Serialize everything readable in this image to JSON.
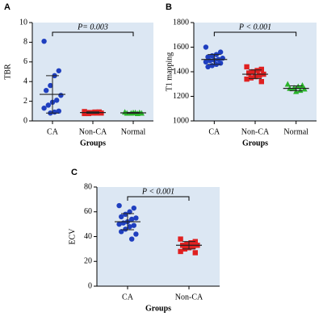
{
  "chart_data": [
    {
      "type": "strip",
      "panel_label": "A",
      "annotation": "P= 0.003",
      "y_label": "TBR",
      "x_label": "Groups",
      "categories": [
        "CA",
        "Non-CA",
        "Normal"
      ],
      "ylim": [
        0,
        10
      ],
      "yticks": [
        0,
        2,
        4,
        6,
        8,
        10
      ],
      "series": [
        {
          "color": "#1f3fbf",
          "marker": "circle",
          "values": [
            8.1,
            5.1,
            4.6,
            3.6,
            3.1,
            2.6,
            2.1,
            1.9,
            1.6,
            1.3,
            1.0,
            0.9,
            0.8
          ],
          "mean": 2.7,
          "sd": 1.9
        },
        {
          "color": "#e02020",
          "marker": "square",
          "values": [
            0.95,
            0.9,
            0.9,
            0.85,
            0.85,
            0.8,
            0.8,
            0.8,
            0.75,
            0.75,
            0.9,
            0.85
          ],
          "mean": 0.85,
          "sd": 0.07
        },
        {
          "color": "#2ab42a",
          "marker": "triangle",
          "values": [
            0.9,
            0.85,
            0.85,
            0.8,
            0.8,
            0.8,
            0.75,
            0.85
          ],
          "mean": 0.82,
          "sd": 0.05
        }
      ]
    },
    {
      "type": "strip",
      "panel_label": "B",
      "annotation": "P < 0.001",
      "y_label": "T1 mapping",
      "x_label": "Groups",
      "categories": [
        "CA",
        "Non-CA",
        "Normal"
      ],
      "ylim": [
        1000,
        1800
      ],
      "yticks": [
        1000,
        1200,
        1400,
        1600,
        1800
      ],
      "series": [
        {
          "color": "#1f3fbf",
          "marker": "circle",
          "values": [
            1600,
            1560,
            1540,
            1530,
            1520,
            1510,
            1500,
            1495,
            1490,
            1480,
            1470,
            1460,
            1450,
            1440
          ],
          "mean": 1500,
          "sd": 40
        },
        {
          "color": "#e02020",
          "marker": "square",
          "values": [
            1440,
            1420,
            1410,
            1400,
            1390,
            1380,
            1370,
            1360,
            1350,
            1340,
            1320
          ],
          "mean": 1380,
          "sd": 35
        },
        {
          "color": "#2ab42a",
          "marker": "triangle",
          "values": [
            1300,
            1290,
            1280,
            1270,
            1265,
            1260,
            1250,
            1240
          ],
          "mean": 1265,
          "sd": 20
        }
      ]
    },
    {
      "type": "strip",
      "panel_label": "C",
      "annotation": "P < 0.001",
      "y_label": "ECV",
      "x_label": "Groups",
      "categories": [
        "CA",
        "Non-CA"
      ],
      "ylim": [
        0,
        80
      ],
      "yticks": [
        0,
        20,
        40,
        60,
        80
      ],
      "series": [
        {
          "color": "#1f3fbf",
          "marker": "circle",
          "values": [
            65,
            63,
            60,
            58,
            56,
            55,
            54,
            52,
            51,
            50,
            49,
            48,
            46,
            44,
            42,
            38
          ],
          "mean": 52,
          "sd": 6.5
        },
        {
          "color": "#e02020",
          "marker": "square",
          "values": [
            38,
            36,
            35,
            34,
            33,
            33,
            32,
            31,
            30,
            28,
            27
          ],
          "mean": 33,
          "sd": 3
        }
      ]
    }
  ]
}
